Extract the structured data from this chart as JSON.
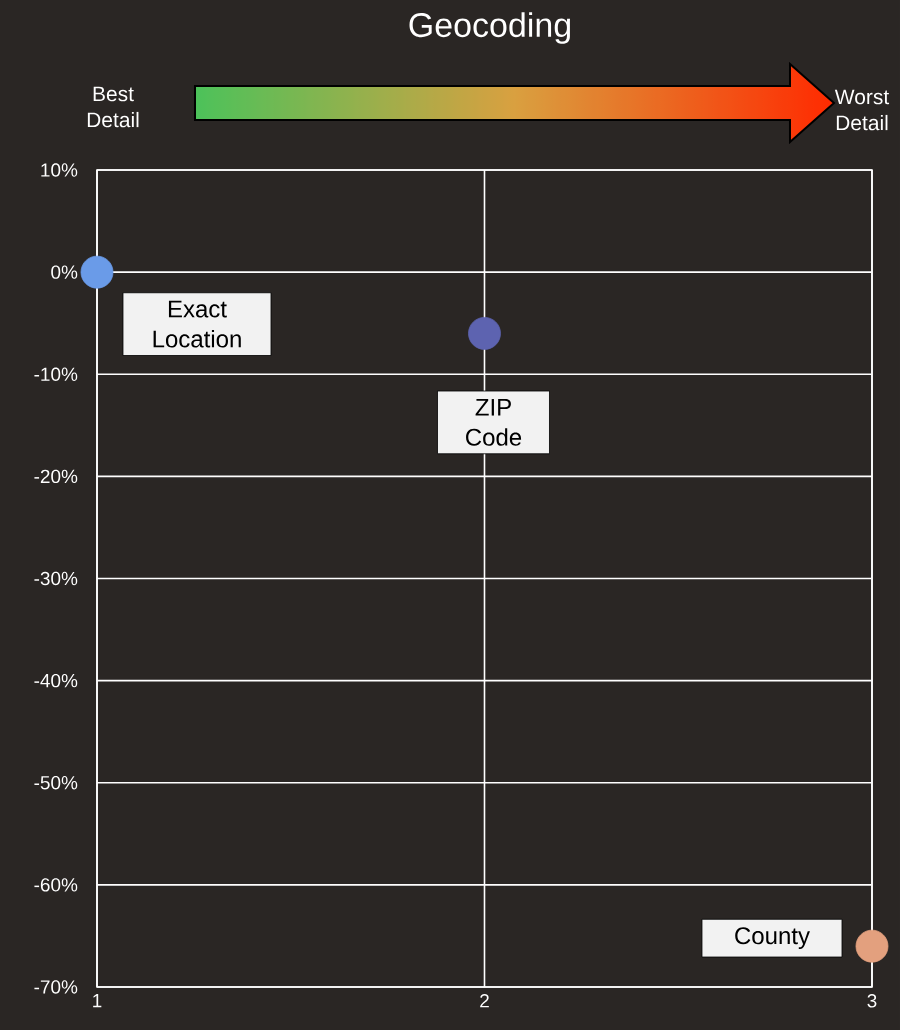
{
  "chart_data": {
    "type": "scatter",
    "title": "Geocoding",
    "x": [
      1,
      2,
      3
    ],
    "values": [
      0,
      -6,
      -66
    ],
    "colors": [
      "#6a9be8",
      "#5d63b0",
      "#e3a07e"
    ],
    "marker": "circle",
    "grid": true,
    "xlim": [
      1,
      3
    ],
    "xticks": [
      1,
      2,
      3
    ],
    "ylim": [
      -70,
      10
    ],
    "yticks": [
      {
        "value": 10,
        "label": "10%"
      },
      {
        "value": 0,
        "label": "0%"
      },
      {
        "value": -10,
        "label": "-10%"
      },
      {
        "value": -20,
        "label": "-20%"
      },
      {
        "value": -30,
        "label": "-30%"
      },
      {
        "value": -40,
        "label": "-40%"
      },
      {
        "value": -50,
        "label": "-50%"
      },
      {
        "value": -60,
        "label": "-60%"
      },
      {
        "value": -70,
        "label": "-70%"
      }
    ],
    "annotations": [
      {
        "text": "Exact Location",
        "x": 1,
        "y": 0
      },
      {
        "text": "ZIP Code",
        "x": 2,
        "y": -6
      },
      {
        "text": "County",
        "x": 3,
        "y": -66
      },
      "Best Detail",
      "Worst Detail"
    ]
  }
}
